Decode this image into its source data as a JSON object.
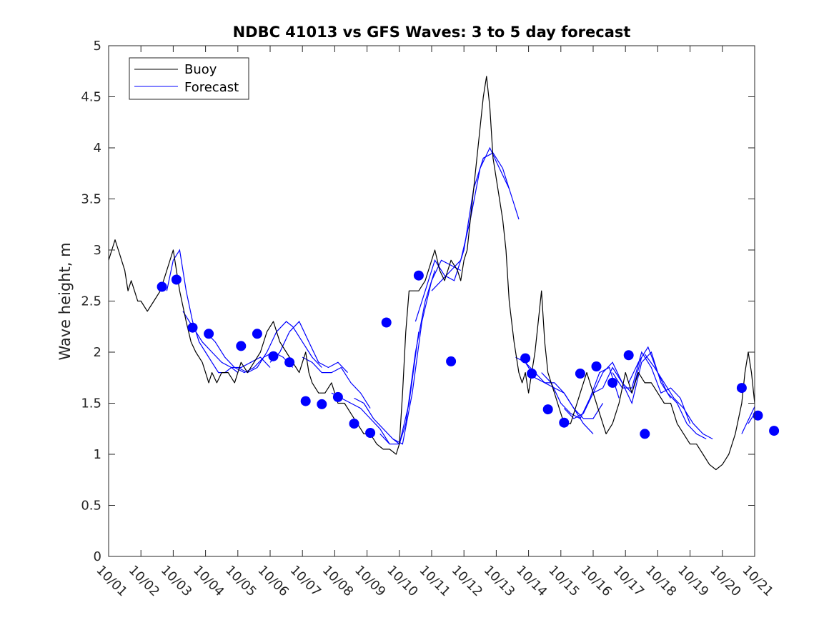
{
  "chart_data": {
    "type": "line",
    "title": "NDBC 41013 vs GFS Waves: 3 to 5 day forecast",
    "xlabel": "",
    "ylabel": "Wave height, m",
    "xlim": [
      0,
      20
    ],
    "ylim": [
      0,
      5
    ],
    "x_tick_labels": [
      "10/01",
      "10/02",
      "10/03",
      "10/04",
      "10/05",
      "10/06",
      "10/07",
      "10/08",
      "10/09",
      "10/10",
      "10/11",
      "10/12",
      "10/13",
      "10/14",
      "10/15",
      "10/16",
      "10/17",
      "10/18",
      "10/19",
      "10/20",
      "10/21"
    ],
    "y_ticks": [
      0,
      0.5,
      1,
      1.5,
      2,
      2.5,
      3,
      3.5,
      4,
      4.5,
      5
    ],
    "y_tick_labels": [
      "0",
      "0.5",
      "1",
      "1.5",
      "2",
      "2.5",
      "3",
      "3.5",
      "4",
      "4.5",
      "5"
    ],
    "legend": {
      "position": "top-left",
      "entries": [
        "Buoy",
        "Forecast"
      ]
    },
    "colors": {
      "buoy": "#000000",
      "forecast": "#0000ff",
      "axes": "#262626"
    },
    "series": [
      {
        "name": "Buoy",
        "x": [
          0,
          0.1,
          0.2,
          0.3,
          0.4,
          0.5,
          0.6,
          0.7,
          0.8,
          0.9,
          1.0,
          1.2,
          1.4,
          1.6,
          1.8,
          2.0,
          2.2,
          2.4,
          2.55,
          2.7,
          2.9,
          3.0,
          3.1,
          3.2,
          3.35,
          3.5,
          3.7,
          3.9,
          4.1,
          4.3,
          4.5,
          4.7,
          4.9,
          5.1,
          5.3,
          5.5,
          5.7,
          5.9,
          6.0,
          6.1,
          6.2,
          6.3,
          6.5,
          6.7,
          6.9,
          7.1,
          7.3,
          7.5,
          7.7,
          7.9,
          8.1,
          8.3,
          8.5,
          8.7,
          8.9,
          9.0,
          9.1,
          9.2,
          9.3,
          9.45,
          9.6,
          9.8,
          10.0,
          10.1,
          10.25,
          10.4,
          10.6,
          10.8,
          10.9,
          11.0,
          11.1,
          11.2,
          11.3,
          11.4,
          11.5,
          11.6,
          11.7,
          11.8,
          11.9,
          12.0,
          12.1,
          12.2,
          12.3,
          12.4,
          12.55,
          12.7,
          12.8,
          12.9,
          13.0,
          13.1,
          13.2,
          13.3,
          13.4,
          13.5,
          13.6,
          13.7,
          13.8,
          13.9,
          14.0,
          14.1,
          14.2,
          14.3,
          14.4,
          14.5,
          14.6,
          14.8,
          15.0,
          15.2,
          15.4,
          15.6,
          15.8,
          16.0,
          16.2,
          16.4,
          16.6,
          16.8,
          17.0,
          17.2,
          17.4,
          17.6,
          17.8,
          18.0,
          18.2,
          18.4,
          18.6,
          18.8,
          19.0,
          19.2,
          19.4,
          19.6,
          19.7,
          19.8,
          19.9,
          20.0
        ],
        "values": [
          2.9,
          3.0,
          3.1,
          3.0,
          2.9,
          2.8,
          2.6,
          2.7,
          2.6,
          2.5,
          2.5,
          2.4,
          2.5,
          2.6,
          2.8,
          3.0,
          2.6,
          2.3,
          2.1,
          2.0,
          1.9,
          1.8,
          1.7,
          1.8,
          1.7,
          1.8,
          1.8,
          1.7,
          1.9,
          1.8,
          1.9,
          2.0,
          2.2,
          2.3,
          2.1,
          2.0,
          1.9,
          1.8,
          1.9,
          2.0,
          1.8,
          1.7,
          1.6,
          1.6,
          1.7,
          1.5,
          1.5,
          1.4,
          1.3,
          1.2,
          1.2,
          1.1,
          1.05,
          1.05,
          1.0,
          1.1,
          1.6,
          2.2,
          2.6,
          2.6,
          2.6,
          2.7,
          2.9,
          3.0,
          2.8,
          2.7,
          2.9,
          2.8,
          2.7,
          2.9,
          3.0,
          3.3,
          3.6,
          3.9,
          4.2,
          4.5,
          4.7,
          4.4,
          3.9,
          3.7,
          3.5,
          3.3,
          3.0,
          2.5,
          2.1,
          1.8,
          1.7,
          1.8,
          1.6,
          1.8,
          2.0,
          2.3,
          2.6,
          2.1,
          1.8,
          1.7,
          1.6,
          1.5,
          1.4,
          1.3,
          1.3,
          1.3,
          1.4,
          1.5,
          1.6,
          1.8,
          1.6,
          1.4,
          1.2,
          1.3,
          1.5,
          1.8,
          1.6,
          1.8,
          1.7,
          1.7,
          1.6,
          1.5,
          1.5,
          1.3,
          1.2,
          1.1,
          1.1,
          1.0,
          0.9,
          0.85,
          0.9,
          1.0,
          1.2,
          1.5,
          1.8,
          2.0,
          1.8,
          1.5
        ]
      },
      {
        "name": "Forecast",
        "segments": [
          {
            "x": [
              1.8,
              2.0,
              2.2,
              2.4,
              2.6,
              2.8,
              3.0,
              3.2,
              3.4,
              3.6,
              3.8,
              4.0
            ],
            "values": [
              2.6,
              2.9,
              3.0,
              2.6,
              2.3,
              2.1,
              2.0,
              1.9,
              1.8,
              1.8,
              1.85,
              1.8
            ]
          },
          {
            "x": [
              2.3,
              2.6,
              2.9,
              3.2,
              3.5,
              3.8,
              4.1,
              4.4,
              4.7,
              5.0
            ],
            "values": [
              2.4,
              2.25,
              2.1,
              2.0,
              1.9,
              1.85,
              1.85,
              1.9,
              1.95,
              1.85
            ]
          },
          {
            "x": [
              3.0,
              3.3,
              3.6,
              3.9,
              4.2,
              4.5,
              4.8,
              5.1,
              5.4,
              5.7
            ],
            "values": [
              2.2,
              2.1,
              1.95,
              1.85,
              1.8,
              1.85,
              1.95,
              2.0,
              1.95,
              1.85
            ]
          },
          {
            "x": [
              4.0,
              4.3,
              4.6,
              4.9,
              5.2,
              5.5,
              5.7,
              6.0,
              6.3,
              6.6
            ],
            "values": [
              1.85,
              1.8,
              1.85,
              2.0,
              2.2,
              2.3,
              2.25,
              2.1,
              1.95,
              1.85
            ]
          },
          {
            "x": [
              5.0,
              5.3,
              5.6,
              5.9,
              6.2,
              6.5,
              6.8,
              7.1,
              7.4
            ],
            "values": [
              1.9,
              2.0,
              2.2,
              2.3,
              2.1,
              1.9,
              1.85,
              1.9,
              1.8
            ]
          },
          {
            "x": [
              6.0,
              6.3,
              6.6,
              6.9,
              7.2,
              7.5,
              7.8,
              8.1
            ],
            "values": [
              1.95,
              1.9,
              1.8,
              1.8,
              1.85,
              1.7,
              1.6,
              1.45
            ]
          },
          {
            "x": [
              6.9,
              7.2,
              7.5,
              7.8,
              8.1,
              8.4,
              8.7
            ],
            "values": [
              1.6,
              1.55,
              1.5,
              1.45,
              1.35,
              1.25,
              1.1
            ]
          },
          {
            "x": [
              7.6,
              7.9,
              8.2,
              8.5,
              8.8,
              9.0,
              9.3,
              9.6
            ],
            "values": [
              1.55,
              1.5,
              1.35,
              1.25,
              1.15,
              1.1,
              1.5,
              2.2
            ]
          },
          {
            "x": [
              8.4,
              8.7,
              9.0,
              9.2,
              9.5,
              9.8,
              10.1
            ],
            "values": [
              1.2,
              1.1,
              1.1,
              1.3,
              2.0,
              2.5,
              2.8
            ]
          },
          {
            "x": [
              8.8,
              9.1,
              9.4,
              9.7,
              10.0,
              10.3,
              10.6,
              10.9
            ],
            "values": [
              1.15,
              1.1,
              1.6,
              2.3,
              2.7,
              2.9,
              2.85,
              2.8
            ]
          },
          {
            "x": [
              9.5,
              9.8,
              10.1,
              10.4,
              10.7,
              11.0,
              11.3,
              11.6,
              11.9,
              12.2,
              12.5,
              12.7
            ],
            "values": [
              2.3,
              2.6,
              2.9,
              2.75,
              2.7,
              3.0,
              3.6,
              3.9,
              3.95,
              3.8,
              3.5,
              3.3
            ]
          },
          {
            "x": [
              10.0,
              10.3,
              10.6,
              10.9,
              11.2,
              11.5,
              11.8,
              12.1,
              12.4
            ],
            "values": [
              2.6,
              2.7,
              2.8,
              2.9,
              3.3,
              3.8,
              4.0,
              3.8,
              3.6
            ]
          },
          {
            "x": [
              12.6,
              12.9,
              13.2,
              13.5,
              13.8,
              14.1,
              14.4,
              14.7,
              15.0
            ],
            "values": [
              1.95,
              1.9,
              1.8,
              1.7,
              1.65,
              1.6,
              1.45,
              1.3,
              1.2
            ]
          },
          {
            "x": [
              12.9,
              13.2,
              13.5,
              13.8,
              14.1,
              14.4,
              14.7,
              15.0,
              15.3
            ],
            "values": [
              1.9,
              1.75,
              1.7,
              1.7,
              1.6,
              1.45,
              1.35,
              1.35,
              1.5
            ]
          },
          {
            "x": [
              13.4,
              13.7,
              14.0,
              14.3,
              14.6,
              14.9,
              15.2,
              15.5,
              15.8
            ],
            "values": [
              1.8,
              1.7,
              1.5,
              1.4,
              1.35,
              1.55,
              1.8,
              1.85,
              1.55
            ]
          },
          {
            "x": [
              14.1,
              14.4,
              14.7,
              15.0,
              15.3,
              15.6,
              15.9,
              16.2,
              16.5
            ],
            "values": [
              1.45,
              1.35,
              1.4,
              1.6,
              1.8,
              1.9,
              1.7,
              1.6,
              1.95
            ]
          },
          {
            "x": [
              15.0,
              15.3,
              15.6,
              15.9,
              16.2,
              16.5,
              16.8,
              17.1,
              17.4
            ],
            "values": [
              1.6,
              1.65,
              1.85,
              1.7,
              1.5,
              1.9,
              2.0,
              1.7,
              1.55
            ]
          },
          {
            "x": [
              15.6,
              15.9,
              16.2,
              16.5,
              16.8,
              17.1,
              17.4,
              17.7,
              18.0
            ],
            "values": [
              1.8,
              1.65,
              1.65,
              2.0,
              1.85,
              1.6,
              1.65,
              1.55,
              1.3
            ]
          },
          {
            "x": [
              16.1,
              16.4,
              16.7,
              17.0,
              17.3,
              17.6,
              17.9,
              18.2,
              18.5
            ],
            "values": [
              1.7,
              1.9,
              2.05,
              1.8,
              1.6,
              1.5,
              1.3,
              1.2,
              1.15
            ]
          },
          {
            "x": [
              16.6,
              16.9,
              17.2,
              17.5,
              17.8,
              18.1,
              18.4,
              18.7
            ],
            "values": [
              1.98,
              1.85,
              1.7,
              1.55,
              1.45,
              1.3,
              1.2,
              1.15
            ]
          },
          {
            "x": [
              19.6,
              19.9,
              20.2,
              20.5,
              20.8,
              21.0
            ],
            "values": [
              1.2,
              1.4,
              1.6,
              1.85,
              1.7,
              1.3
            ]
          },
          {
            "x": [
              19.8,
              20.1,
              20.4,
              20.7,
              21.0
            ],
            "values": [
              1.3,
              1.45,
              1.5,
              1.4,
              1.0
            ]
          },
          {
            "x": [
              20.3,
              20.6,
              20.9,
              21.1
            ],
            "values": [
              1.45,
              1.35,
              1.1,
              0.95
            ]
          }
        ]
      }
    ],
    "markers": {
      "series": "Forecast",
      "x": [
        1.65,
        2.1,
        2.6,
        3.1,
        4.1,
        4.6,
        5.1,
        5.6,
        6.1,
        6.6,
        7.1,
        7.6,
        8.1,
        8.6,
        9.6,
        10.6,
        12.9,
        13.1,
        13.6,
        14.1,
        14.6,
        15.1,
        15.6,
        16.1,
        16.6,
        19.6,
        20.1,
        20.6
      ],
      "values": [
        2.64,
        2.71,
        2.24,
        2.18,
        2.06,
        2.18,
        1.96,
        1.9,
        1.52,
        1.49,
        1.56,
        1.3,
        1.21,
        2.29,
        2.75,
        1.91,
        1.94,
        1.79,
        1.44,
        1.31,
        1.79,
        1.86,
        1.7,
        1.97,
        1.2,
        1.65,
        1.38,
        1.23
      ]
    }
  }
}
